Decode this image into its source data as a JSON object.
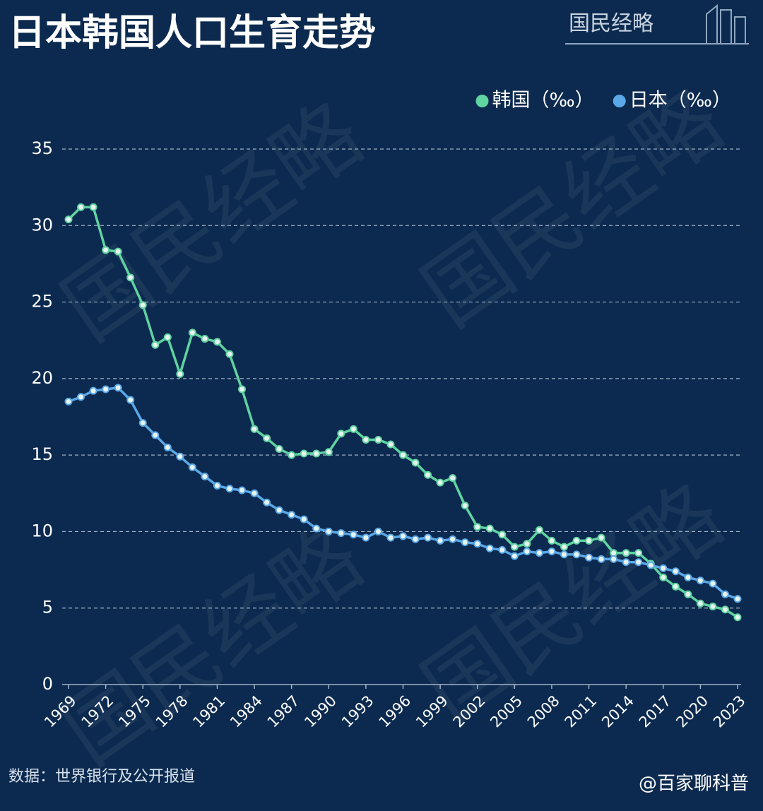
{
  "chart_data": {
    "type": "line",
    "title": "日本韩国人口生育走势",
    "logo": "国民经略",
    "source": "数据：世界银行及公开报道",
    "credit": "@百家聊科普",
    "x": [
      1969,
      1970,
      1971,
      1972,
      1973,
      1974,
      1975,
      1976,
      1977,
      1978,
      1979,
      1980,
      1981,
      1982,
      1983,
      1984,
      1985,
      1986,
      1987,
      1988,
      1989,
      1990,
      1991,
      1992,
      1993,
      1994,
      1995,
      1996,
      1997,
      1998,
      1999,
      2000,
      2001,
      2002,
      2003,
      2004,
      2005,
      2006,
      2007,
      2008,
      2009,
      2010,
      2011,
      2012,
      2013,
      2014,
      2015,
      2016,
      2017,
      2018,
      2019,
      2020,
      2021,
      2022,
      2023
    ],
    "series": [
      {
        "name": "韩国（‰）",
        "color": "#5fd3a0",
        "values": [
          30.4,
          31.2,
          31.2,
          28.4,
          28.3,
          26.6,
          24.8,
          22.2,
          22.7,
          20.3,
          23.0,
          22.6,
          22.4,
          21.6,
          19.3,
          16.7,
          16.1,
          15.4,
          15.0,
          15.1,
          15.1,
          15.2,
          16.4,
          16.7,
          16.0,
          16.0,
          15.7,
          15.0,
          14.5,
          13.7,
          13.2,
          13.5,
          11.7,
          10.3,
          10.2,
          9.8,
          9.0,
          9.2,
          10.1,
          9.4,
          9.0,
          9.4,
          9.4,
          9.6,
          8.6,
          8.6,
          8.6,
          7.9,
          7.0,
          6.4,
          5.9,
          5.3,
          5.1,
          4.9,
          4.4
        ]
      },
      {
        "name": "日本（‰）",
        "color": "#5aa8e8",
        "values": [
          18.5,
          18.8,
          19.2,
          19.3,
          19.4,
          18.6,
          17.1,
          16.3,
          15.5,
          14.9,
          14.2,
          13.6,
          13.0,
          12.8,
          12.7,
          12.5,
          11.9,
          11.4,
          11.1,
          10.8,
          10.2,
          10.0,
          9.9,
          9.8,
          9.6,
          10.0,
          9.6,
          9.7,
          9.5,
          9.6,
          9.4,
          9.5,
          9.3,
          9.2,
          8.9,
          8.8,
          8.4,
          8.7,
          8.6,
          8.7,
          8.5,
          8.5,
          8.3,
          8.2,
          8.2,
          8.0,
          8.0,
          7.8,
          7.6,
          7.4,
          7.0,
          6.8,
          6.6,
          5.9,
          5.6
        ]
      }
    ],
    "xlim": [
      1969,
      2023
    ],
    "xticks": [
      1969,
      1972,
      1975,
      1978,
      1981,
      1984,
      1987,
      1990,
      1993,
      1996,
      1999,
      2002,
      2005,
      2008,
      2011,
      2014,
      2017,
      2020,
      2023
    ],
    "ylim": [
      0,
      35
    ],
    "yticks": [
      0,
      5,
      10,
      15,
      20,
      25,
      30,
      35
    ],
    "grid": true,
    "legend": "top-right"
  }
}
